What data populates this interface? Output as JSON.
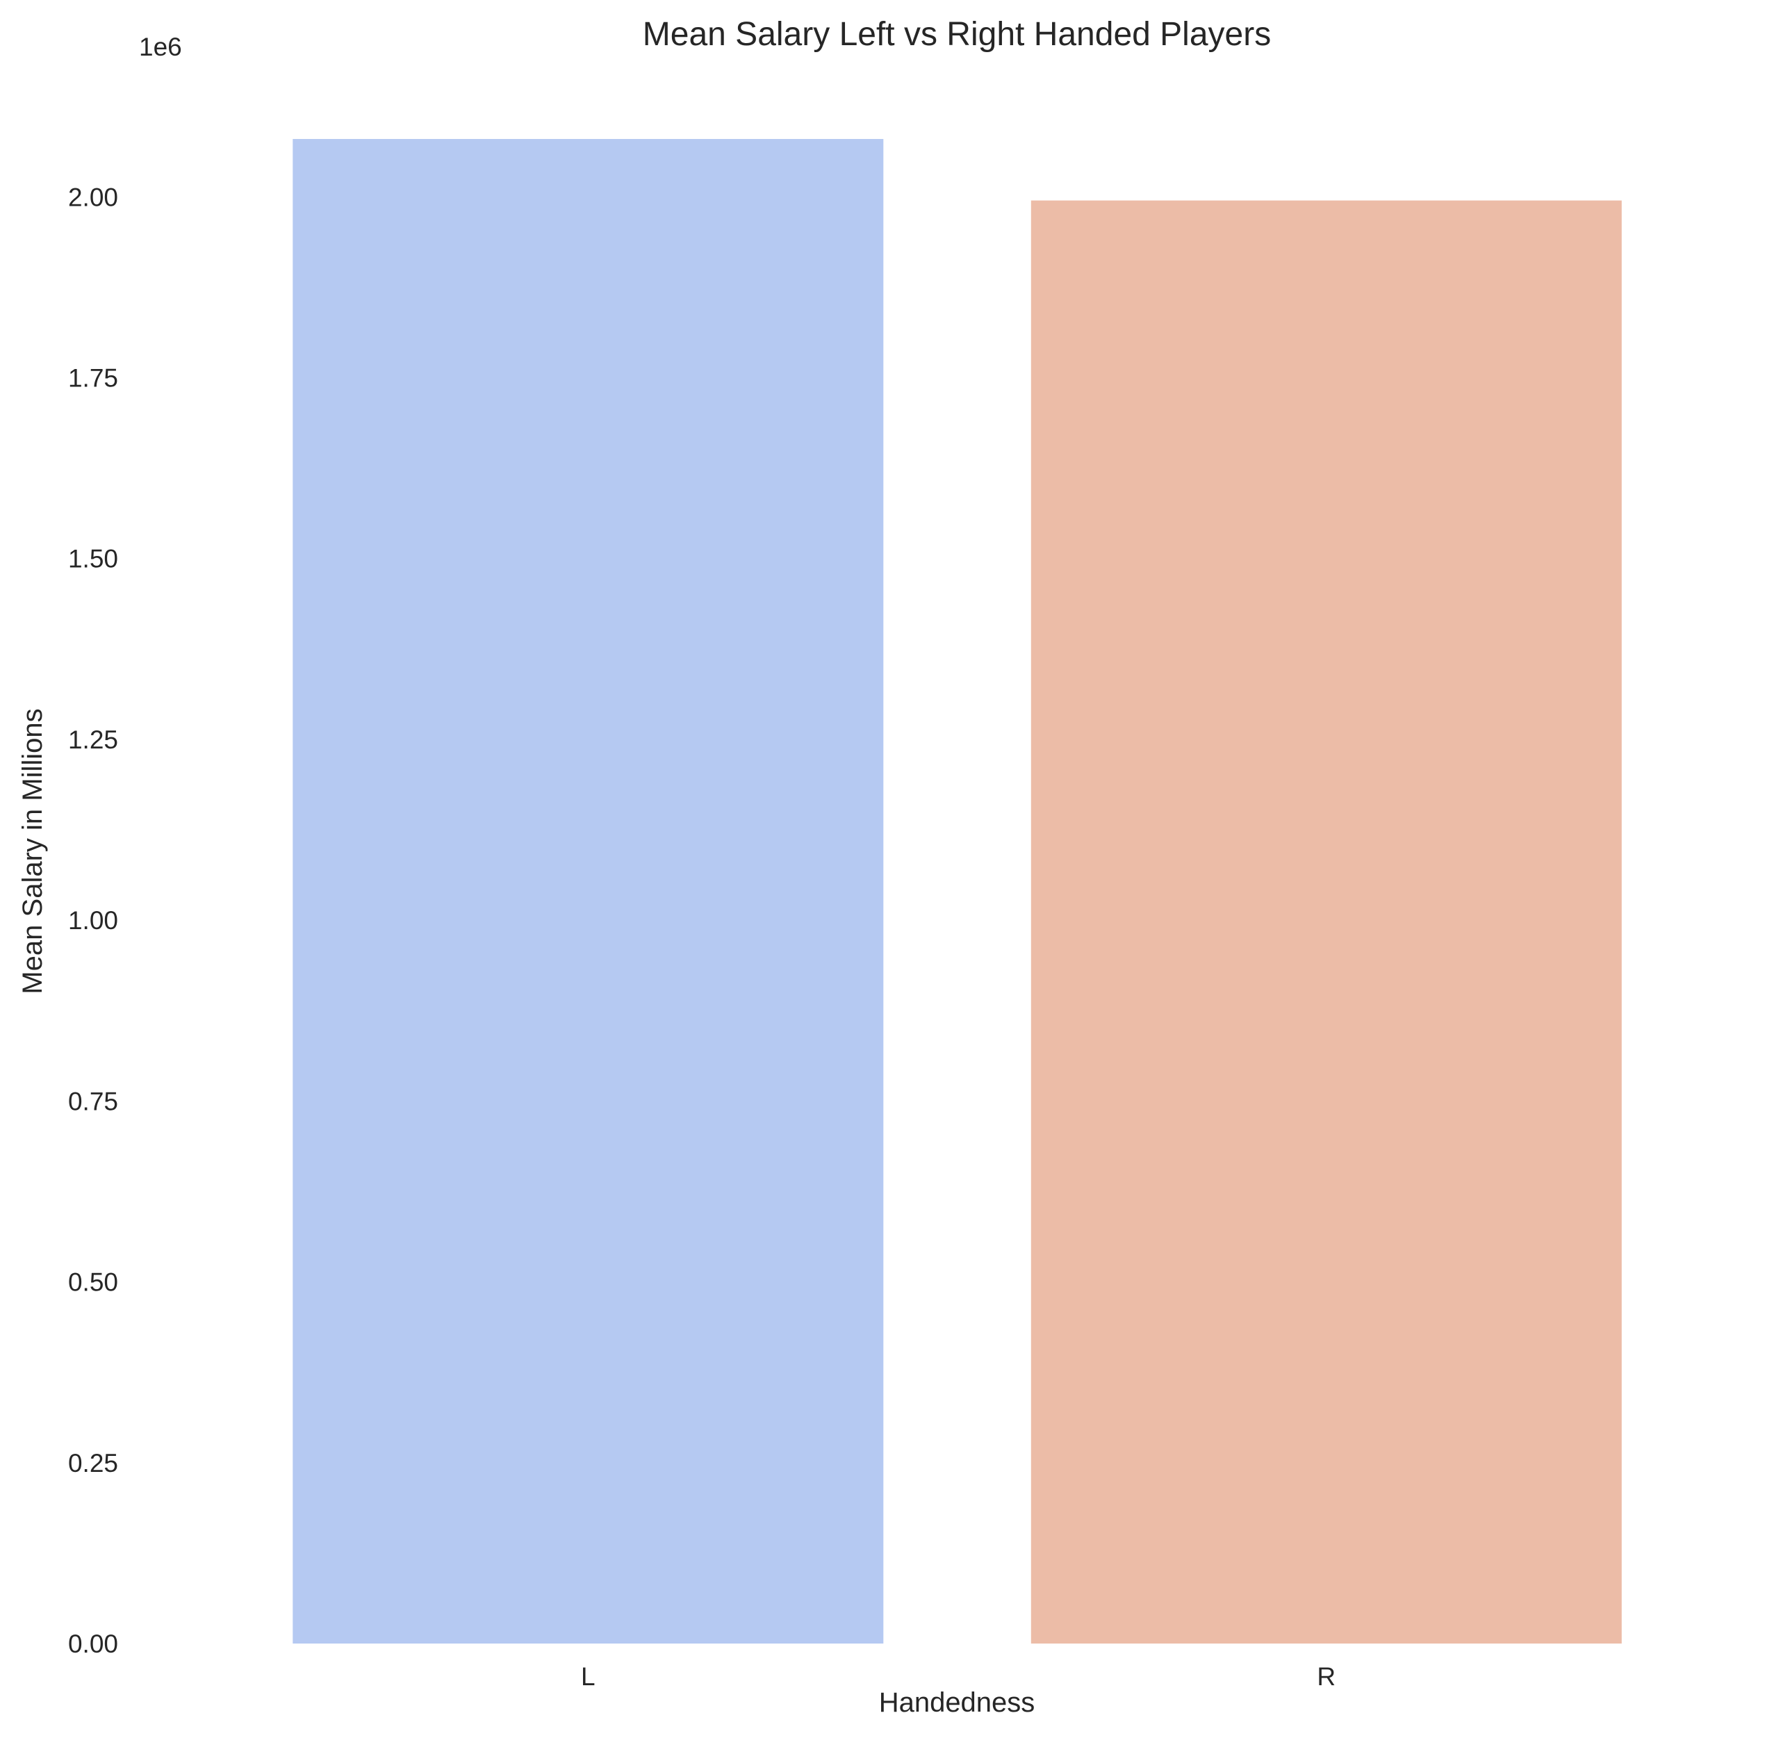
{
  "chart_data": {
    "type": "bar",
    "title": "Mean Salary Left vs Right Handed Players",
    "xlabel": "Handedness",
    "ylabel": "Mean Salary in Millions",
    "y_offset_label": "1e6",
    "categories": [
      "L",
      "R"
    ],
    "values": [
      2080000,
      1995000
    ],
    "colors": [
      "#b5c9f2",
      "#ecbca7"
    ],
    "ylim": [
      0,
      2080000
    ],
    "yticks": [
      0,
      250000,
      500000,
      750000,
      1000000,
      1250000,
      1500000,
      1750000,
      2000000
    ],
    "ytick_labels": [
      "0.00",
      "0.25",
      "0.50",
      "0.75",
      "1.00",
      "1.25",
      "1.50",
      "1.75",
      "2.00"
    ],
    "grid": false,
    "legend": "none"
  }
}
